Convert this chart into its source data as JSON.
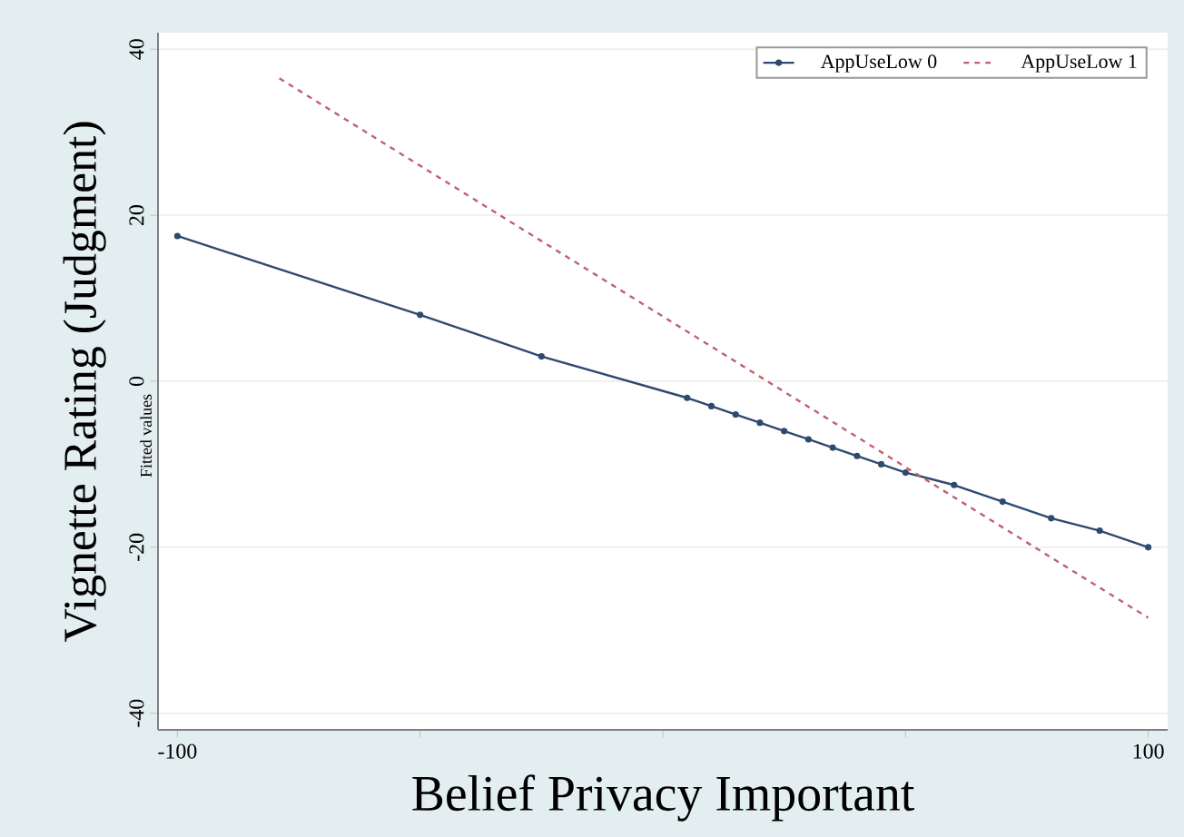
{
  "chart_data": {
    "type": "line",
    "xlabel": "Belief Privacy Important",
    "ylabel": "Vignette Rating (Judgment)",
    "annotations": [
      "Fitted values"
    ],
    "xlim": [
      -104,
      104
    ],
    "ylim": [
      -42,
      42
    ],
    "xticks": [
      -100,
      {
        "value": -50,
        "label": null
      },
      {
        "value": 0,
        "label": null
      },
      {
        "value": 50,
        "label": null
      },
      100
    ],
    "yticks": [
      -40,
      -20,
      0,
      20,
      40
    ],
    "grid": "y",
    "legend": "top right",
    "series": [
      {
        "name": "AppUseLow  0",
        "color": "#2e4a6e",
        "marker": "circle",
        "line_style": "solid",
        "x": [
          -100,
          -50,
          -25,
          5,
          10,
          15,
          20,
          25,
          30,
          35,
          40,
          45,
          50,
          60,
          70,
          80,
          90,
          100
        ],
        "values": [
          17.5,
          8,
          3,
          -2,
          -3,
          -4,
          -5,
          -6,
          -7,
          -8,
          -9,
          -10,
          -11,
          -12.5,
          -14.5,
          -16.5,
          -18,
          -20
        ]
      },
      {
        "name": "AppUseLow  1",
        "color": "#c06070",
        "marker": "none",
        "line_style": "dashed",
        "x": [
          -79,
          100
        ],
        "values": [
          36.5,
          -28.5
        ]
      }
    ]
  }
}
